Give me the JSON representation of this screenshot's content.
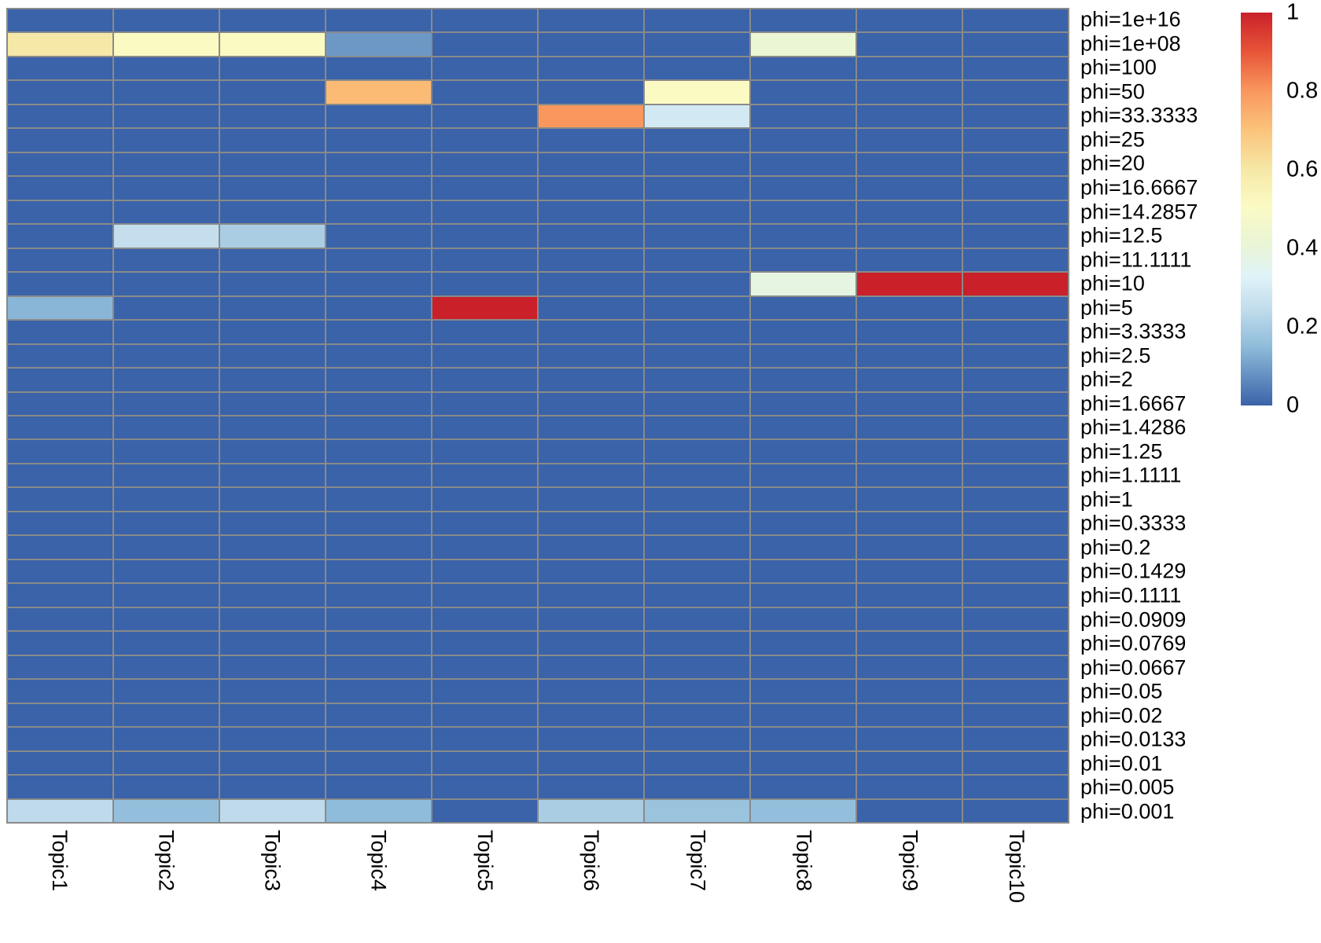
{
  "chart_data": {
    "type": "heatmap",
    "title": "",
    "xlabel": "",
    "ylabel": "",
    "columns": [
      "Topic1",
      "Topic2",
      "Topic3",
      "Topic4",
      "Topic5",
      "Topic6",
      "Topic7",
      "Topic8",
      "Topic9",
      "Topic10"
    ],
    "rows": [
      "phi=1e+16",
      "phi=1e+08",
      "phi=100",
      "phi=50",
      "phi=33.3333",
      "phi=25",
      "phi=20",
      "phi=16.6667",
      "phi=14.2857",
      "phi=12.5",
      "phi=11.1111",
      "phi=10",
      "phi=5",
      "phi=3.3333",
      "phi=2.5",
      "phi=2",
      "phi=1.6667",
      "phi=1.4286",
      "phi=1.25",
      "phi=1.1111",
      "phi=1",
      "phi=0.3333",
      "phi=0.2",
      "phi=0.1429",
      "phi=0.1111",
      "phi=0.0909",
      "phi=0.0769",
      "phi=0.0667",
      "phi=0.05",
      "phi=0.02",
      "phi=0.0133",
      "phi=0.01",
      "phi=0.005",
      "phi=0.001"
    ],
    "values": [
      [
        0,
        0,
        0,
        0,
        0,
        0,
        0,
        0,
        0,
        0
      ],
      [
        0.6,
        0.51,
        0.51,
        0.09,
        0,
        0,
        0,
        0.42,
        0,
        0
      ],
      [
        0,
        0,
        0,
        0,
        0,
        0,
        0,
        0,
        0,
        0
      ],
      [
        0,
        0,
        0,
        0.72,
        0,
        0,
        0.51,
        0,
        0,
        0
      ],
      [
        0,
        0,
        0,
        0,
        0,
        0.8,
        0.29,
        0,
        0,
        0
      ],
      [
        0,
        0,
        0,
        0,
        0,
        0,
        0,
        0,
        0,
        0
      ],
      [
        0,
        0,
        0,
        0,
        0,
        0,
        0,
        0,
        0,
        0
      ],
      [
        0,
        0,
        0,
        0,
        0,
        0,
        0,
        0,
        0,
        0
      ],
      [
        0,
        0,
        0,
        0,
        0,
        0,
        0,
        0,
        0,
        0
      ],
      [
        0,
        0.25,
        0.2,
        0,
        0,
        0,
        0,
        0,
        0,
        0
      ],
      [
        0,
        0,
        0,
        0,
        0,
        0,
        0,
        0,
        0,
        0
      ],
      [
        0,
        0,
        0,
        0,
        0,
        0,
        0,
        0.38,
        1,
        1
      ],
      [
        0.14,
        0,
        0,
        0,
        1,
        0,
        0,
        0,
        0,
        0
      ],
      [
        0,
        0,
        0,
        0,
        0,
        0,
        0,
        0,
        0,
        0
      ],
      [
        0,
        0,
        0,
        0,
        0,
        0,
        0,
        0,
        0,
        0
      ],
      [
        0,
        0,
        0,
        0,
        0,
        0,
        0,
        0,
        0,
        0
      ],
      [
        0,
        0,
        0,
        0,
        0,
        0,
        0,
        0,
        0,
        0
      ],
      [
        0,
        0,
        0,
        0,
        0,
        0,
        0,
        0,
        0,
        0
      ],
      [
        0,
        0,
        0,
        0,
        0,
        0,
        0,
        0,
        0,
        0
      ],
      [
        0,
        0,
        0,
        0,
        0,
        0,
        0,
        0,
        0,
        0
      ],
      [
        0,
        0,
        0,
        0,
        0,
        0,
        0,
        0,
        0,
        0
      ],
      [
        0,
        0,
        0,
        0,
        0,
        0,
        0,
        0,
        0,
        0
      ],
      [
        0,
        0,
        0,
        0,
        0,
        0,
        0,
        0,
        0,
        0
      ],
      [
        0,
        0,
        0,
        0,
        0,
        0,
        0,
        0,
        0,
        0
      ],
      [
        0,
        0,
        0,
        0,
        0,
        0,
        0,
        0,
        0,
        0
      ],
      [
        0,
        0,
        0,
        0,
        0,
        0,
        0,
        0,
        0,
        0
      ],
      [
        0,
        0,
        0,
        0,
        0,
        0,
        0,
        0,
        0,
        0
      ],
      [
        0,
        0,
        0,
        0,
        0,
        0,
        0,
        0,
        0,
        0
      ],
      [
        0,
        0,
        0,
        0,
        0,
        0,
        0,
        0,
        0,
        0
      ],
      [
        0,
        0,
        0,
        0,
        0,
        0,
        0,
        0,
        0,
        0
      ],
      [
        0,
        0,
        0,
        0,
        0,
        0,
        0,
        0,
        0,
        0
      ],
      [
        0,
        0,
        0,
        0,
        0,
        0,
        0,
        0,
        0,
        0
      ],
      [
        0,
        0,
        0,
        0,
        0,
        0,
        0,
        0,
        0,
        0
      ],
      [
        0.24,
        0.16,
        0.24,
        0.15,
        0,
        0.2,
        0.17,
        0.16,
        0,
        0
      ]
    ],
    "value_range": [
      0,
      1
    ],
    "grid_on": true,
    "legend_position": "right",
    "colorbar_ticks": [
      "1",
      "0.8",
      "0.6",
      "0.4",
      "0.2",
      "0"
    ],
    "colorbar_tick_values": [
      1,
      0.8,
      0.6,
      0.4,
      0.2,
      0
    ],
    "palette_name": "RdYlBu reversed",
    "palette_stops": [
      {
        "v": 0.0,
        "c": "#3A63A9"
      },
      {
        "v": 0.15,
        "c": "#8FBCDA"
      },
      {
        "v": 0.25,
        "c": "#C4DEED"
      },
      {
        "v": 0.33,
        "c": "#E0F3F8"
      },
      {
        "v": 0.4,
        "c": "#E8F5D9"
      },
      {
        "v": 0.51,
        "c": "#FBFAC3"
      },
      {
        "v": 0.6,
        "c": "#F6E8A6"
      },
      {
        "v": 0.7,
        "c": "#FBC47B"
      },
      {
        "v": 0.8,
        "c": "#F9975E"
      },
      {
        "v": 0.9,
        "c": "#E85538"
      },
      {
        "v": 1.0,
        "c": "#C9202A"
      }
    ],
    "cell_border_color": "#8A8A8A",
    "text_color": "#000000",
    "background_color": "#FFFFFF"
  }
}
